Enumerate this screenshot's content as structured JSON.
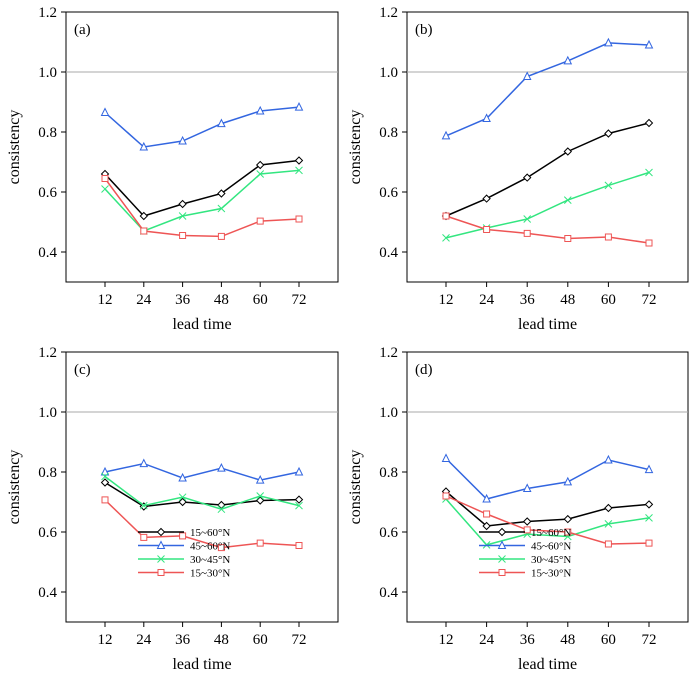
{
  "chart_data": [
    {
      "type": "line",
      "panel_label": "(a)",
      "x": [
        12,
        24,
        36,
        48,
        60,
        72
      ],
      "xlabel": "lead time",
      "ylabel": "consistency",
      "ylim": [
        0.3,
        1.2
      ],
      "yticks": [
        0.4,
        0.6,
        0.8,
        1.0,
        1.2
      ],
      "ytick_labels": [
        "0.4",
        "0.6",
        "0.8",
        "1.0",
        "1.2"
      ],
      "reference_line": 1.0,
      "show_legend": false,
      "series": [
        {
          "name": "15~60°N",
          "color": "#000000",
          "marker": "diamond",
          "values": [
            0.66,
            0.52,
            0.56,
            0.595,
            0.69,
            0.705
          ]
        },
        {
          "name": "45~60°N",
          "color": "#3366e0",
          "marker": "triangle",
          "values": [
            0.865,
            0.75,
            0.77,
            0.828,
            0.87,
            0.883
          ]
        },
        {
          "name": "30~45°N",
          "color": "#33e680",
          "marker": "x",
          "values": [
            0.61,
            0.47,
            0.52,
            0.545,
            0.66,
            0.672
          ]
        },
        {
          "name": "15~30°N",
          "color": "#ee5555",
          "marker": "square",
          "values": [
            0.645,
            0.47,
            0.455,
            0.452,
            0.503,
            0.51
          ]
        }
      ]
    },
    {
      "type": "line",
      "panel_label": "(b)",
      "x": [
        12,
        24,
        36,
        48,
        60,
        72
      ],
      "xlabel": "lead time",
      "ylabel": "consistency",
      "ylim": [
        0.3,
        1.2
      ],
      "yticks": [
        0.4,
        0.6,
        0.8,
        1.0,
        1.2
      ],
      "ytick_labels": [
        "0.4",
        "0.6",
        "0.8",
        "1.0",
        "1.2"
      ],
      "reference_line": 1.0,
      "show_legend": false,
      "series": [
        {
          "name": "15~60°N",
          "color": "#000000",
          "marker": "diamond",
          "values": [
            0.52,
            0.578,
            0.648,
            0.735,
            0.795,
            0.83
          ]
        },
        {
          "name": "45~60°N",
          "color": "#3366e0",
          "marker": "triangle",
          "values": [
            0.787,
            0.845,
            0.985,
            1.037,
            1.097,
            1.09
          ]
        },
        {
          "name": "30~45°N",
          "color": "#33e680",
          "marker": "x",
          "values": [
            0.447,
            0.48,
            0.51,
            0.573,
            0.622,
            0.665
          ]
        },
        {
          "name": "15~30°N",
          "color": "#ee5555",
          "marker": "square",
          "values": [
            0.52,
            0.475,
            0.462,
            0.445,
            0.45,
            0.43
          ]
        }
      ]
    },
    {
      "type": "line",
      "panel_label": "(c)",
      "x": [
        12,
        24,
        36,
        48,
        60,
        72
      ],
      "xlabel": "lead time",
      "ylabel": "consistency",
      "ylim": [
        0.3,
        1.2
      ],
      "yticks": [
        0.4,
        0.6,
        0.8,
        1.0,
        1.2
      ],
      "ytick_labels": [
        "0.4",
        "0.6",
        "0.8",
        "1.0",
        "1.2"
      ],
      "reference_line": 1.0,
      "show_legend": true,
      "series": [
        {
          "name": "15~60°N",
          "color": "#000000",
          "marker": "diamond",
          "values": [
            0.765,
            0.685,
            0.7,
            0.69,
            0.705,
            0.708
          ]
        },
        {
          "name": "45~60°N",
          "color": "#3366e0",
          "marker": "triangle",
          "values": [
            0.8,
            0.828,
            0.78,
            0.813,
            0.773,
            0.8
          ]
        },
        {
          "name": "30~45°N",
          "color": "#33e680",
          "marker": "x",
          "values": [
            0.785,
            0.688,
            0.716,
            0.676,
            0.72,
            0.688
          ]
        },
        {
          "name": "15~30°N",
          "color": "#ee5555",
          "marker": "square",
          "values": [
            0.707,
            0.582,
            0.587,
            0.548,
            0.563,
            0.555
          ]
        }
      ]
    },
    {
      "type": "line",
      "panel_label": "(d)",
      "x": [
        12,
        24,
        36,
        48,
        60,
        72
      ],
      "xlabel": "lead time",
      "ylabel": "consistency",
      "ylim": [
        0.3,
        1.2
      ],
      "yticks": [
        0.4,
        0.6,
        0.8,
        1.0,
        1.2
      ],
      "ytick_labels": [
        "0.4",
        "0.6",
        "0.8",
        "1.0",
        "1.2"
      ],
      "reference_line": 1.0,
      "show_legend": true,
      "series": [
        {
          "name": "15~60°N",
          "color": "#000000",
          "marker": "diamond",
          "values": [
            0.735,
            0.62,
            0.635,
            0.643,
            0.68,
            0.692
          ]
        },
        {
          "name": "45~60°N",
          "color": "#3366e0",
          "marker": "triangle",
          "values": [
            0.845,
            0.71,
            0.745,
            0.767,
            0.84,
            0.808
          ]
        },
        {
          "name": "30~45°N",
          "color": "#33e680",
          "marker": "x",
          "values": [
            0.71,
            0.557,
            0.593,
            0.585,
            0.627,
            0.647
          ]
        },
        {
          "name": "15~30°N",
          "color": "#ee5555",
          "marker": "square",
          "values": [
            0.72,
            0.66,
            0.607,
            0.6,
            0.56,
            0.563
          ]
        }
      ]
    }
  ]
}
